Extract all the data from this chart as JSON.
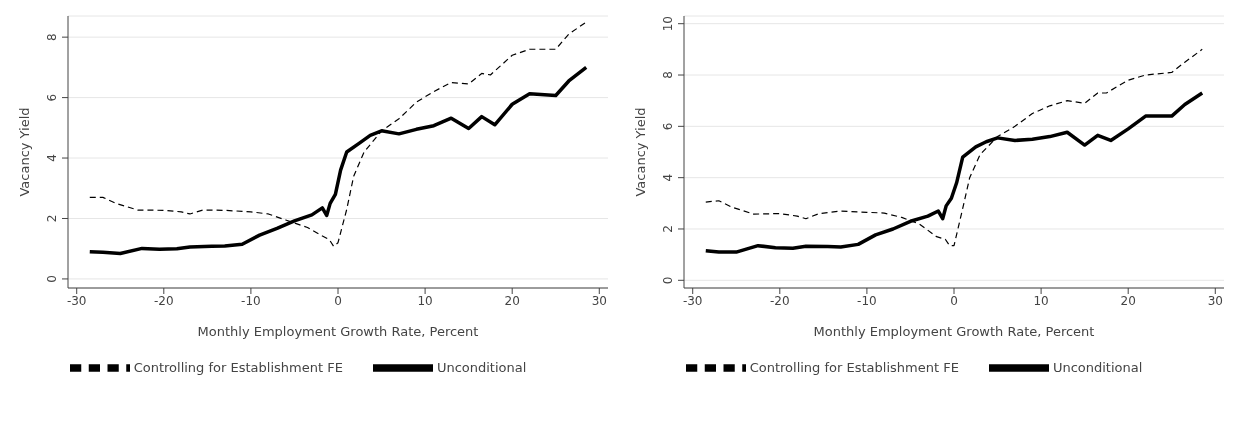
{
  "chart_data": [
    {
      "type": "line",
      "xlabel": "Monthly Employment Growth Rate, Percent",
      "ylabel": "Vacancy Yield",
      "xlim": [
        -31,
        31
      ],
      "xticks": [
        -30,
        -20,
        -10,
        0,
        10,
        20,
        30
      ],
      "ylim": [
        -0.3,
        8.7
      ],
      "yticks": [
        0,
        2,
        4,
        6,
        8
      ],
      "grid": "y",
      "legend": "bottom",
      "marker": "none",
      "series": [
        {
          "name": "Unconditional",
          "color": "#000000",
          "line_style": "solid",
          "x": [
            -28.5,
            -27,
            -25,
            -22.5,
            -20.5,
            -18.5,
            -17,
            -14.5,
            -13,
            -11,
            -9,
            -7,
            -5,
            -3,
            -1.8,
            -1.3,
            -0.9,
            -0.3,
            0.3,
            1,
            2.5,
            3.7,
            5,
            7,
            9,
            11,
            13,
            15,
            16.5,
            18,
            20,
            22,
            25,
            26.5,
            28.5
          ],
          "values": [
            0.9,
            0.88,
            0.84,
            1.01,
            0.98,
            1.0,
            1.06,
            1.08,
            1.09,
            1.15,
            1.45,
            1.67,
            1.92,
            2.12,
            2.35,
            2.1,
            2.5,
            2.8,
            3.6,
            4.2,
            4.5,
            4.75,
            4.9,
            4.8,
            4.95,
            5.07,
            5.32,
            4.98,
            5.37,
            5.1,
            5.78,
            6.13,
            6.07,
            6.55,
            7.0
          ]
        },
        {
          "name": "Controlling for Establishment FE",
          "color": "#000000",
          "line_style": "dashed",
          "x": [
            -28.5,
            -27,
            -25.5,
            -23,
            -20,
            -18,
            -17,
            -15.5,
            -13,
            -10,
            -8,
            -6,
            -3.5,
            -2,
            -1,
            -0.5,
            0,
            1,
            1.8,
            3,
            5,
            7,
            9,
            11,
            13,
            15,
            16.5,
            17.5,
            20,
            22,
            25,
            26.5,
            28.5
          ],
          "values": [
            2.7,
            2.7,
            2.5,
            2.28,
            2.27,
            2.22,
            2.15,
            2.28,
            2.27,
            2.22,
            2.15,
            1.95,
            1.7,
            1.45,
            1.3,
            1.08,
            1.2,
            2.3,
            3.4,
            4.2,
            4.9,
            5.3,
            5.85,
            6.2,
            6.5,
            6.45,
            6.8,
            6.75,
            7.4,
            7.6,
            7.6,
            8.1,
            8.5
          ]
        }
      ]
    },
    {
      "type": "line",
      "xlabel": "Monthly Employment Growth Rate, Percent",
      "ylabel": "Vacancy Yield",
      "xlim": [
        -31,
        31
      ],
      "xticks": [
        -30,
        -20,
        -10,
        0,
        10,
        20,
        30
      ],
      "ylim": [
        -0.3,
        10.3
      ],
      "yticks": [
        0,
        2,
        4,
        6,
        8,
        10
      ],
      "grid": "y",
      "legend": "bottom",
      "marker": "none",
      "series": [
        {
          "name": "Unconditional",
          "color": "#000000",
          "line_style": "solid",
          "x": [
            -28.5,
            -27,
            -25,
            -22.5,
            -20.5,
            -18.5,
            -17,
            -14.5,
            -13,
            -11,
            -9,
            -7,
            -5,
            -3,
            -1.8,
            -1.3,
            -0.9,
            -0.3,
            0.3,
            1,
            2.5,
            3.7,
            5,
            7,
            9,
            11,
            13,
            15,
            16.5,
            18,
            20,
            22,
            25,
            26.5,
            28.5
          ],
          "values": [
            1.15,
            1.1,
            1.1,
            1.35,
            1.27,
            1.25,
            1.33,
            1.32,
            1.3,
            1.4,
            1.77,
            2.0,
            2.3,
            2.5,
            2.7,
            2.4,
            2.9,
            3.2,
            3.8,
            4.8,
            5.2,
            5.4,
            5.55,
            5.45,
            5.5,
            5.6,
            5.77,
            5.27,
            5.65,
            5.45,
            5.9,
            6.4,
            6.4,
            6.85,
            7.3
          ]
        },
        {
          "name": "Controlling for Establishment FE",
          "color": "#000000",
          "line_style": "dashed",
          "x": [
            -28.5,
            -27,
            -25.5,
            -23,
            -20,
            -18,
            -17,
            -15.5,
            -13,
            -10,
            -8,
            -6,
            -4,
            -2,
            -1,
            -0.5,
            0,
            1,
            1.8,
            3,
            5,
            7,
            9,
            11,
            13,
            15,
            16.5,
            17.5,
            20,
            22,
            25,
            26.5,
            28.5
          ],
          "values": [
            3.05,
            3.1,
            2.85,
            2.58,
            2.6,
            2.5,
            2.4,
            2.6,
            2.7,
            2.65,
            2.62,
            2.45,
            2.2,
            1.7,
            1.6,
            1.35,
            1.35,
            2.8,
            4.0,
            4.9,
            5.6,
            6.0,
            6.5,
            6.8,
            7.0,
            6.9,
            7.3,
            7.3,
            7.8,
            8.0,
            8.1,
            8.5,
            9.0
          ]
        }
      ]
    }
  ]
}
